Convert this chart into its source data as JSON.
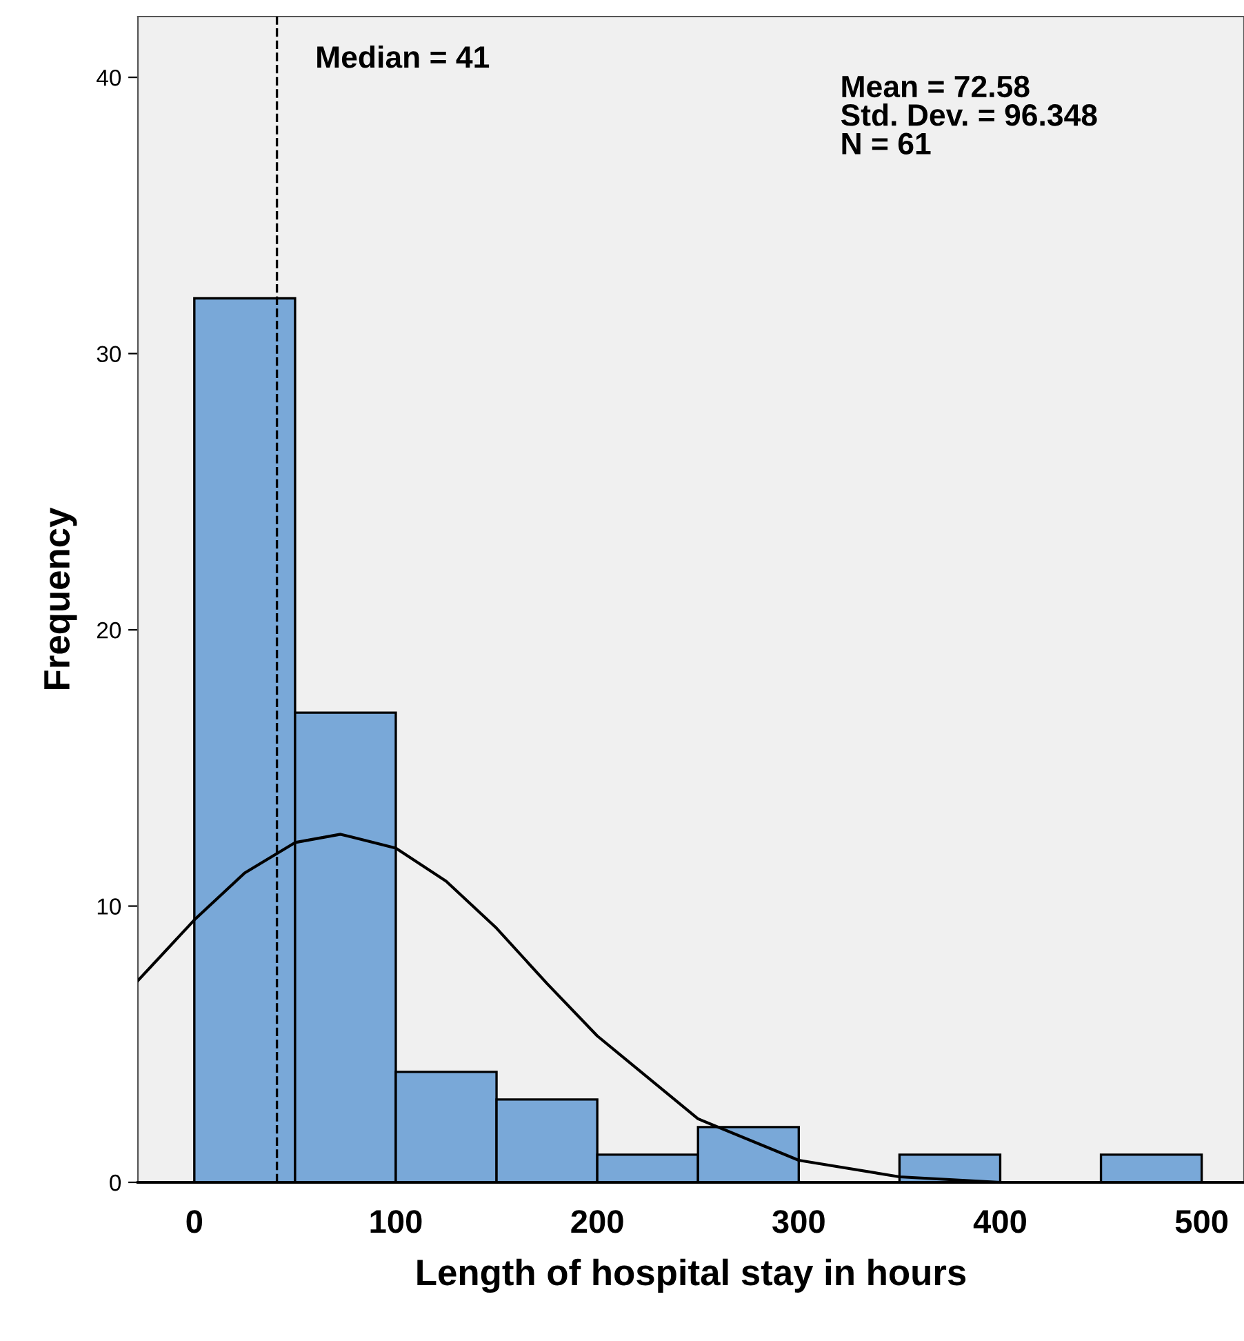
{
  "chart_data": {
    "type": "histogram",
    "xlabel": "Length of hospital stay in hours",
    "ylabel": "Frequency",
    "series": [
      {
        "color": "#79a8d8",
        "bins": [
          0,
          50,
          100,
          150,
          200,
          250,
          300,
          350,
          400,
          450,
          500
        ],
        "values": [
          32,
          17,
          4,
          3,
          1,
          2,
          0,
          1,
          0,
          1
        ]
      },
      {
        "type": "line",
        "color": "#000000",
        "x": [
          -28,
          0,
          25,
          50,
          72.58,
          100,
          125,
          150,
          175,
          200,
          250,
          300,
          350,
          400,
          450,
          520
        ],
        "values": [
          7.3,
          9.5,
          11.2,
          12.3,
          12.6,
          12.1,
          10.9,
          9.2,
          7.2,
          5.3,
          2.3,
          0.8,
          0.2,
          0.0,
          0.0,
          0.0
        ]
      }
    ],
    "xlim": [
      -28,
      521
    ],
    "ylim": [
      0,
      42.2
    ],
    "xticks": [
      0,
      100,
      200,
      300,
      400,
      500
    ],
    "yticks": [
      0,
      10,
      20,
      30,
      40
    ],
    "ref_lines": [
      {
        "axis": "x",
        "value": 41,
        "label": "Median = 41",
        "line_style": "dashed",
        "color": "#000000"
      }
    ],
    "annotations": [
      "Mean = 72.58\nStd. Dev. = 96.348\nN = 61"
    ],
    "grid": false,
    "legend": false,
    "marker": "none",
    "line_style": "solid"
  }
}
